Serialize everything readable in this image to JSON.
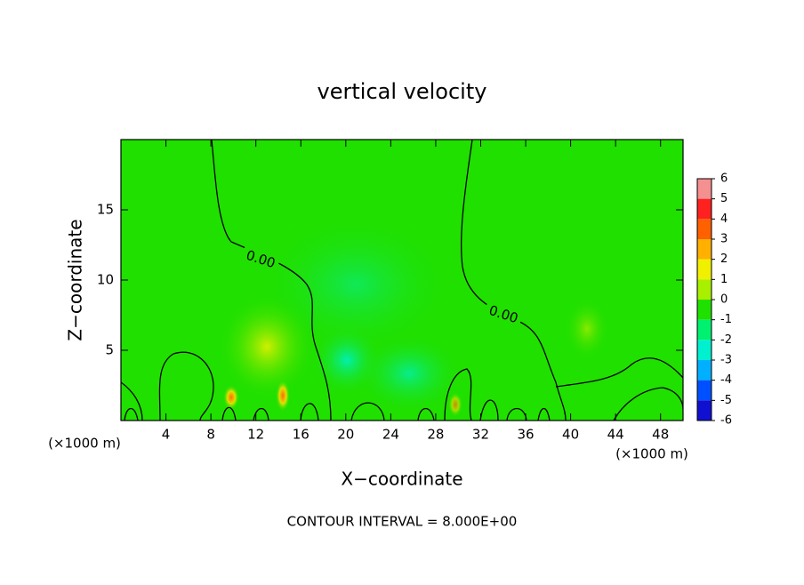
{
  "chart_data": {
    "type": "contour",
    "title": "vertical velocity",
    "x_label": "X−coordinate",
    "y_label": "Z−coordinate",
    "x_unit": "(×1000 m)",
    "y_unit": "(×1000 m)",
    "xlim": [
      0,
      50
    ],
    "xticks": [
      4,
      8,
      12,
      16,
      20,
      24,
      28,
      32,
      36,
      40,
      44,
      48
    ],
    "ylim": [
      0,
      20
    ],
    "yticks": [
      5,
      10,
      15
    ],
    "contour_labels": [
      "0.00",
      "0.00"
    ],
    "annotation": "CONTOUR INTERVAL = 8.000E+00",
    "colorbar": {
      "levels": [
        6,
        5,
        4,
        3,
        2,
        1,
        0,
        -1,
        -2,
        -3,
        -4,
        -5,
        -6
      ],
      "colors": [
        "#f49090",
        "#ff2020",
        "#ff6000",
        "#ffb000",
        "#f0f000",
        "#a8f000",
        "#20e000",
        "#00f070",
        "#00f0d0",
        "#00b0ff",
        "#0050ff",
        "#1010d0",
        "#7010b0"
      ]
    }
  }
}
